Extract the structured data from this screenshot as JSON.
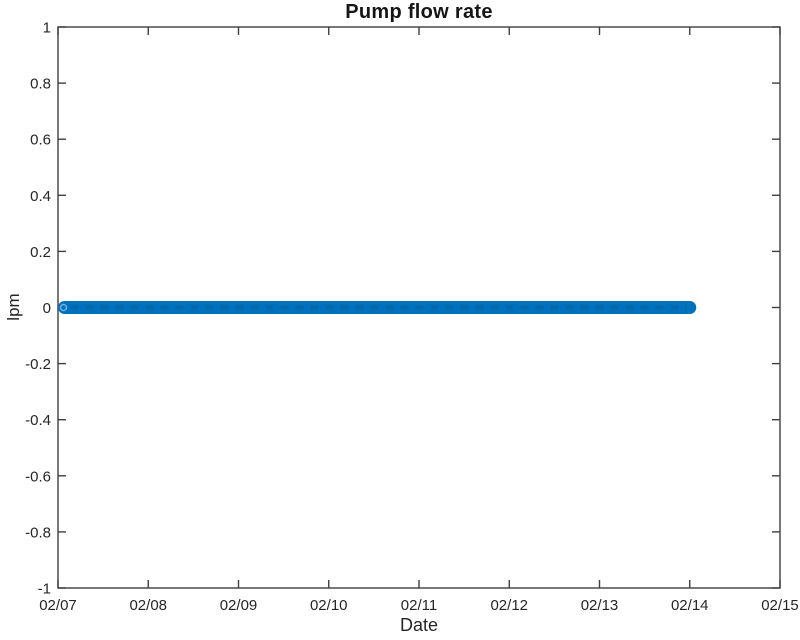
{
  "chart_data": {
    "type": "line",
    "title": "Pump flow rate",
    "xlabel": "Date",
    "ylabel": "lpm",
    "x_tick_labels": [
      "02/07",
      "02/08",
      "02/09",
      "02/10",
      "02/11",
      "02/12",
      "02/13",
      "02/14",
      "02/15"
    ],
    "x_tick_days": [
      0,
      1,
      2,
      3,
      4,
      5,
      6,
      7,
      8
    ],
    "xlim_days": [
      0,
      8
    ],
    "y_ticks": [
      -1,
      -0.8,
      -0.6,
      -0.4,
      -0.2,
      0,
      0.2,
      0.4,
      0.6,
      0.8,
      1
    ],
    "y_tick_labels": [
      "-1",
      "-0.8",
      "-0.6",
      "-0.4",
      "-0.2",
      "0",
      "0.2",
      "0.4",
      "0.6",
      "0.8",
      "1"
    ],
    "ylim": [
      -1,
      1
    ],
    "grid": false,
    "box": true,
    "tick_direction": "in",
    "series": [
      {
        "name": "pump flow rate",
        "color": "#0072BD",
        "style": "thick solid line of dense dot markers",
        "x_days": [
          0,
          7
        ],
        "x_dates": [
          "02/07",
          "02/14"
        ],
        "y_values": [
          0,
          0
        ],
        "constant_value_lpm": 0
      }
    ]
  },
  "colors": {
    "background": "#ffffff",
    "axis": "#3f3f3f",
    "tick_label": "#262626",
    "title": "#161616",
    "series_blue": "#0072BD"
  }
}
